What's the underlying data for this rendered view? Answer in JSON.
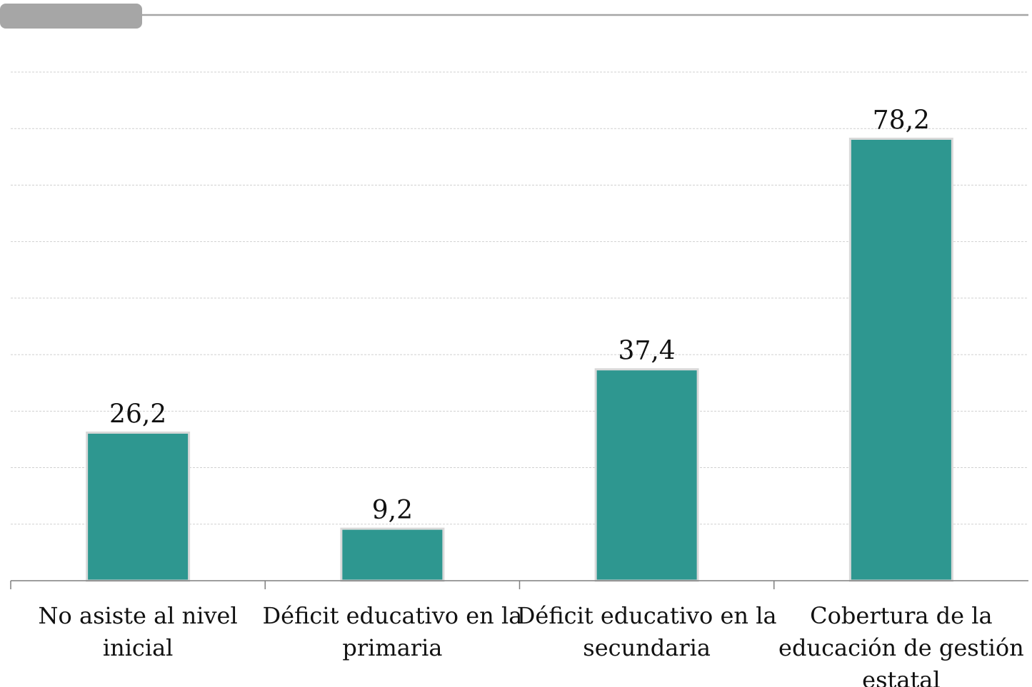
{
  "colors": {
    "bar": "#2e9790",
    "bar_outline": "#d9d9d9",
    "header": "#a6a6a6"
  },
  "chart_data": {
    "type": "bar",
    "title": "",
    "xlabel": "",
    "ylabel": "",
    "categories": [
      [
        "No asiste al nivel",
        "inicial"
      ],
      [
        "Déficit educativo en la",
        "primaria"
      ],
      [
        "Déficit educativo en la",
        "secundaria"
      ],
      [
        "Cobertura de la",
        "educación de gestión",
        "estatal"
      ]
    ],
    "values": [
      26.2,
      9.2,
      37.4,
      78.2
    ],
    "value_labels": [
      "26,2",
      "9,2",
      "37,4",
      "78,2"
    ],
    "ylim": [
      0,
      90
    ],
    "grid": true,
    "grid_step": 10,
    "legend": "none",
    "y_tick_labels_shown": false
  }
}
